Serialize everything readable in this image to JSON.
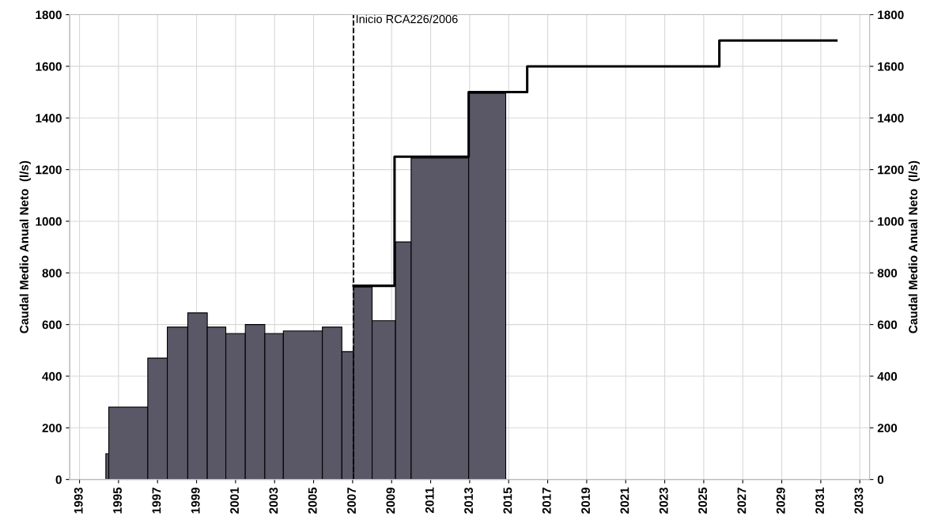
{
  "chart_data": {
    "type": "histogram",
    "ylabel": "Caudal Medio Anual Neto  (l/s)",
    "y2label": "Caudal Medio Anual Neto  (l/s)",
    "bins": [
      1994.35,
      1994.5,
      1996.5,
      1997.5,
      1998.55,
      1999.55,
      2000.5,
      2001.5,
      2002.5,
      2003.45,
      2005.45,
      2006.45,
      2007.05,
      2008.0,
      2009.2,
      2010.0,
      2012.95,
      2014.85
    ],
    "values": [
      100,
      280,
      470,
      590,
      645,
      590,
      565,
      600,
      565,
      575,
      590,
      495,
      745,
      615,
      920,
      1245,
      1495
    ],
    "color": "#5a5766",
    "series": [
      {
        "type": "step",
        "color": "#000000",
        "x": [
          2007.05,
          2009.15,
          2012.95,
          2015.95,
          2025.8,
          2031.8
        ],
        "values": [
          750,
          1250,
          1500,
          1600,
          1700,
          1700
        ]
      }
    ],
    "xlim": [
      1992.5,
      2033.5
    ],
    "xticks": [
      1993,
      1995,
      1997,
      1999,
      2001,
      2003,
      2005,
      2007,
      2009,
      2011,
      2013,
      2015,
      2017,
      2019,
      2021,
      2023,
      2025,
      2027,
      2029,
      2031,
      2033
    ],
    "ylim": [
      0,
      1800
    ],
    "yticks": [
      0,
      200,
      400,
      600,
      800,
      1000,
      1200,
      1400,
      1600,
      1800
    ],
    "y2lim": [
      0,
      1800
    ],
    "y2ticks": [
      0,
      200,
      400,
      600,
      800,
      1000,
      1200,
      1400,
      1600,
      1800
    ],
    "ref_lines": [
      {
        "axis": "x",
        "value": 2007.05,
        "label": "Inicio RCA226/2006",
        "color": "#000000",
        "line_style": "dashed"
      }
    ],
    "grid": true
  }
}
